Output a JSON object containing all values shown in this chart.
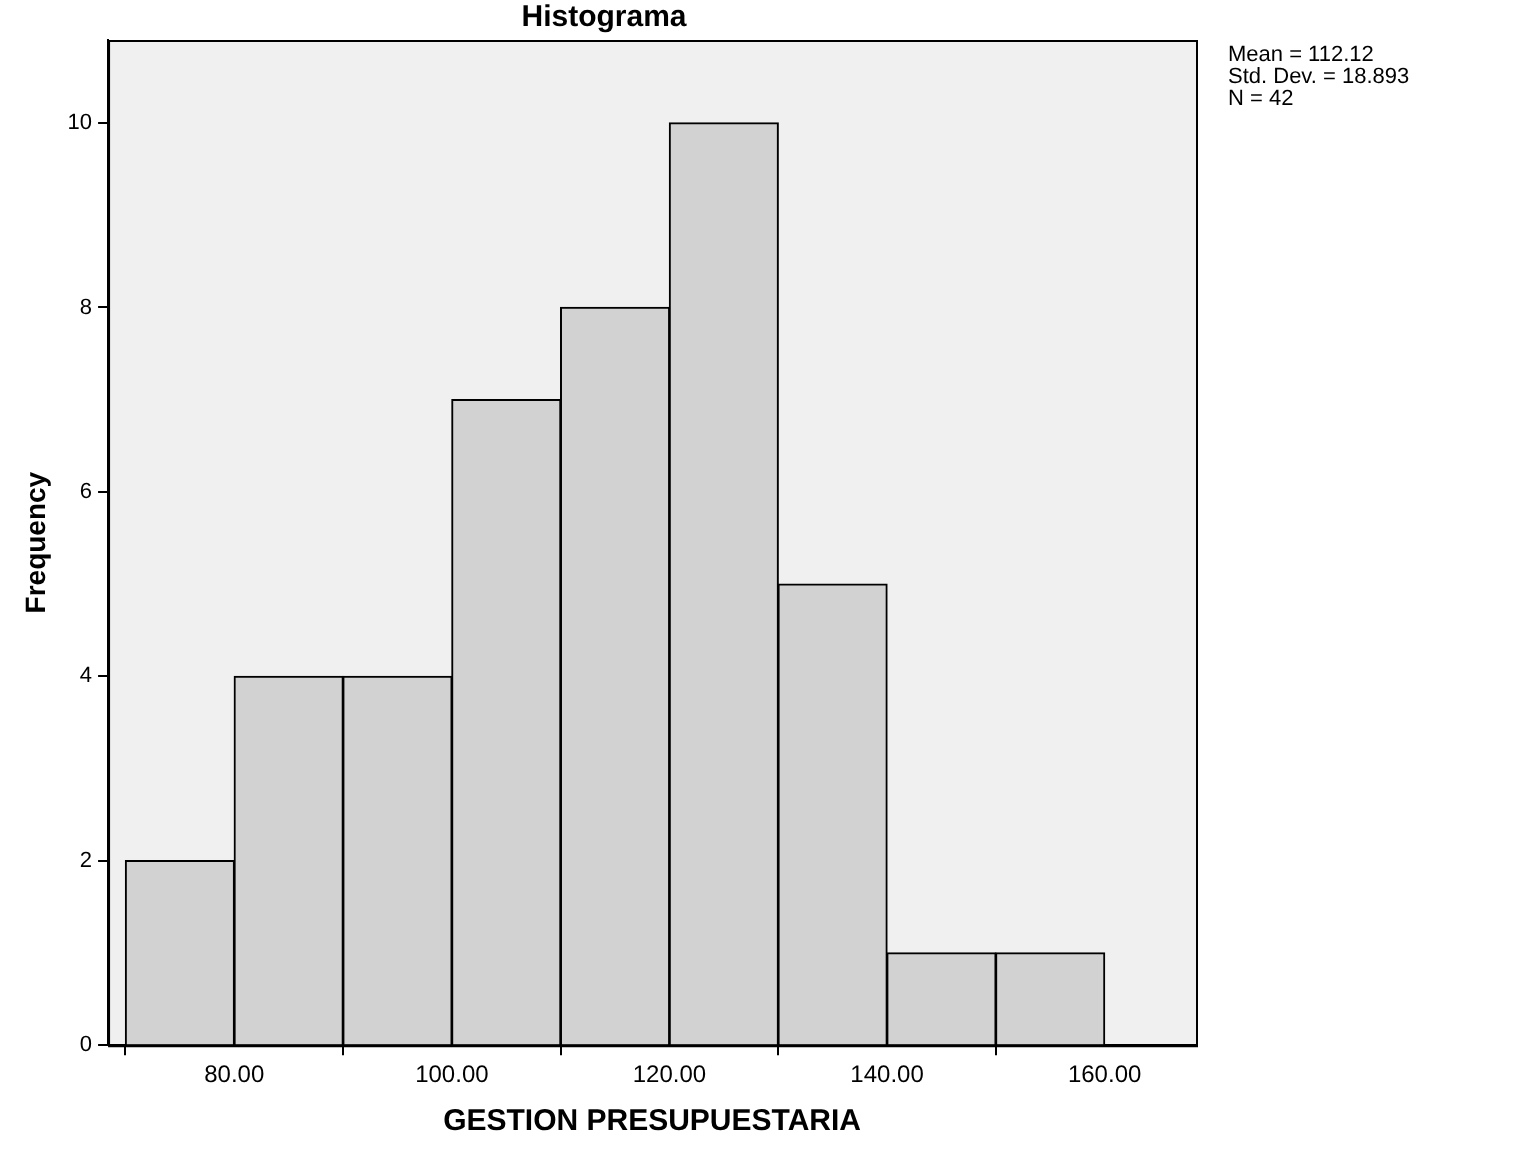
{
  "chart_data": {
    "type": "histogram",
    "title": "Histograma",
    "xlabel": "GESTION PRESUPUESTARIA",
    "ylabel": "Frequency",
    "bins": [
      70,
      80,
      90,
      100,
      110,
      120,
      130,
      140,
      150,
      160
    ],
    "values": [
      2,
      4,
      4,
      7,
      8,
      10,
      5,
      1,
      1
    ],
    "color": "#d2d2d2",
    "xlim": [
      68.4,
      168.4
    ],
    "xticks": [
      {
        "value": 80,
        "label": "80.00"
      },
      {
        "value": 100,
        "label": "100.00"
      },
      {
        "value": 120,
        "label": "120.00"
      },
      {
        "value": 140,
        "label": "140.00"
      },
      {
        "value": 160,
        "label": "160.00"
      }
    ],
    "ylim": [
      0,
      10.9
    ],
    "yticks": [
      0,
      2,
      4,
      6,
      8,
      10
    ],
    "grid": false,
    "legend": false,
    "annotations": [
      "Mean = 112.12",
      "Std. Dev. = 18.893",
      "N = 42"
    ]
  }
}
